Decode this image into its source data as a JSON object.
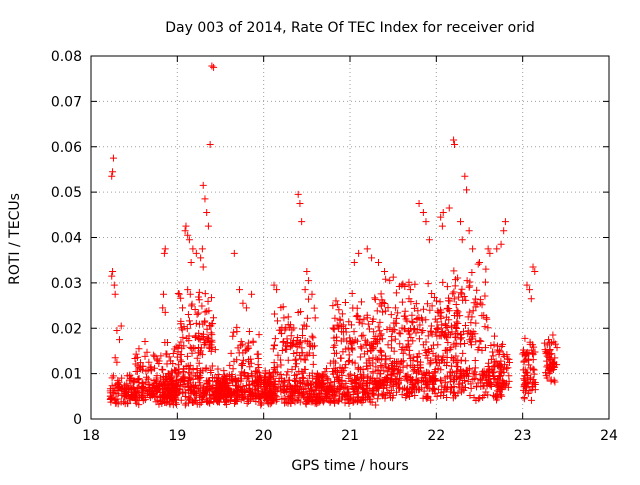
{
  "chart_data": {
    "type": "scatter",
    "title": "Day 003 of 2014, Rate Of TEC Index for receiver orid",
    "xlabel": "GPS time / hours",
    "ylabel": "ROTI / TECUs",
    "xlim": [
      18,
      24
    ],
    "ylim": [
      0,
      0.08
    ],
    "x_ticks": [
      18,
      19,
      20,
      21,
      22,
      23,
      24
    ],
    "x_tick_labels": [
      "18",
      "19",
      "20",
      "21",
      "22",
      "23",
      "24"
    ],
    "y_ticks": [
      0,
      0.01,
      0.02,
      0.03,
      0.04,
      0.05,
      0.06,
      0.07,
      0.08
    ],
    "y_tick_labels": [
      "0",
      "0.01",
      "0.02",
      "0.03",
      "0.04",
      "0.05",
      "0.06",
      "0.07",
      "0.08"
    ],
    "grid": true,
    "marker": "+",
    "marker_color": "#ff0000",
    "series": [
      {
        "name": "ROTI",
        "points": [
          [
            18.26,
            0.0575
          ],
          [
            18.25,
            0.0545
          ],
          [
            18.24,
            0.0535
          ],
          [
            18.25,
            0.0325
          ],
          [
            18.24,
            0.0315
          ],
          [
            18.27,
            0.0295
          ],
          [
            18.28,
            0.0275
          ],
          [
            18.3,
            0.0195
          ],
          [
            18.35,
            0.0205
          ],
          [
            18.33,
            0.0175
          ],
          [
            18.28,
            0.0135
          ],
          [
            18.3,
            0.0125
          ],
          [
            18.26,
            0.0095
          ],
          [
            18.31,
            0.0085
          ],
          [
            18.86,
            0.0375
          ],
          [
            18.85,
            0.0365
          ],
          [
            18.84,
            0.0275
          ],
          [
            18.83,
            0.0245
          ],
          [
            18.86,
            0.0235
          ],
          [
            19.1,
            0.0425
          ],
          [
            19.09,
            0.0415
          ],
          [
            19.12,
            0.0405
          ],
          [
            19.14,
            0.0395
          ],
          [
            19.18,
            0.0375
          ],
          [
            19.22,
            0.0365
          ],
          [
            19.16,
            0.0345
          ],
          [
            19.12,
            0.0285
          ],
          [
            19.15,
            0.0275
          ],
          [
            19.06,
            0.0245
          ],
          [
            19.3,
            0.0515
          ],
          [
            19.32,
            0.0485
          ],
          [
            19.34,
            0.0455
          ],
          [
            19.36,
            0.0425
          ],
          [
            19.29,
            0.0375
          ],
          [
            19.27,
            0.0355
          ],
          [
            19.3,
            0.0335
          ],
          [
            19.38,
            0.0605
          ],
          [
            19.4,
            0.0778
          ],
          [
            19.42,
            0.0775
          ],
          [
            19.66,
            0.0365
          ],
          [
            19.72,
            0.0285
          ],
          [
            19.76,
            0.0255
          ],
          [
            19.8,
            0.0245
          ],
          [
            19.86,
            0.0275
          ],
          [
            20.12,
            0.0295
          ],
          [
            20.15,
            0.0285
          ],
          [
            20.4,
            0.0495
          ],
          [
            20.42,
            0.0475
          ],
          [
            20.44,
            0.0435
          ],
          [
            20.5,
            0.0325
          ],
          [
            20.52,
            0.0305
          ],
          [
            20.48,
            0.0285
          ],
          [
            20.56,
            0.0275
          ],
          [
            21.1,
            0.0365
          ],
          [
            21.05,
            0.0345
          ],
          [
            21.2,
            0.0375
          ],
          [
            21.25,
            0.0355
          ],
          [
            21.33,
            0.0345
          ],
          [
            21.4,
            0.0325
          ],
          [
            21.46,
            0.0305
          ],
          [
            21.6,
            0.0295
          ],
          [
            21.7,
            0.0285
          ],
          [
            21.8,
            0.0475
          ],
          [
            21.85,
            0.0455
          ],
          [
            21.88,
            0.0435
          ],
          [
            21.92,
            0.0395
          ],
          [
            22.05,
            0.0445
          ],
          [
            22.08,
            0.0455
          ],
          [
            22.07,
            0.0425
          ],
          [
            22.15,
            0.0465
          ],
          [
            22.2,
            0.0615
          ],
          [
            22.21,
            0.0605
          ],
          [
            22.28,
            0.0435
          ],
          [
            22.33,
            0.0535
          ],
          [
            22.35,
            0.0505
          ],
          [
            22.38,
            0.0415
          ],
          [
            22.42,
            0.0375
          ],
          [
            22.3,
            0.0395
          ],
          [
            22.5,
            0.0345
          ],
          [
            22.6,
            0.0375
          ],
          [
            22.62,
            0.0365
          ],
          [
            22.8,
            0.0435
          ],
          [
            22.78,
            0.0415
          ],
          [
            22.75,
            0.0385
          ],
          [
            22.7,
            0.0375
          ],
          [
            23.05,
            0.0295
          ],
          [
            23.08,
            0.0285
          ],
          [
            23.1,
            0.0265
          ],
          [
            23.12,
            0.0335
          ],
          [
            23.14,
            0.0325
          ],
          [
            23.3,
            0.0175
          ],
          [
            23.35,
            0.0185
          ],
          [
            23.38,
            0.0165
          ]
        ],
        "density_bands": [
          {
            "x": [
              18.22,
              19.0
            ],
            "y": [
              0.003,
              0.011
            ],
            "count": 260
          },
          {
            "x": [
              18.5,
              19.0
            ],
            "y": [
              0.008,
              0.018
            ],
            "count": 60
          },
          {
            "x": [
              18.85,
              19.6
            ],
            "y": [
              0.003,
              0.012
            ],
            "count": 260
          },
          {
            "x": [
              19.0,
              19.45
            ],
            "y": [
              0.01,
              0.03
            ],
            "count": 110
          },
          {
            "x": [
              19.45,
              20.1
            ],
            "y": [
              0.003,
              0.011
            ],
            "count": 220
          },
          {
            "x": [
              19.6,
              19.95
            ],
            "y": [
              0.009,
              0.022
            ],
            "count": 45
          },
          {
            "x": [
              20.0,
              20.7
            ],
            "y": [
              0.003,
              0.012
            ],
            "count": 220
          },
          {
            "x": [
              20.1,
              20.6
            ],
            "y": [
              0.01,
              0.028
            ],
            "count": 90
          },
          {
            "x": [
              20.6,
              21.3
            ],
            "y": [
              0.003,
              0.013
            ],
            "count": 240
          },
          {
            "x": [
              20.8,
              21.3
            ],
            "y": [
              0.01,
              0.03
            ],
            "count": 110
          },
          {
            "x": [
              21.3,
              22.0
            ],
            "y": [
              0.004,
              0.016
            ],
            "count": 240
          },
          {
            "x": [
              21.3,
              22.0
            ],
            "y": [
              0.012,
              0.032
            ],
            "count": 130
          },
          {
            "x": [
              22.0,
              22.8
            ],
            "y": [
              0.004,
              0.018
            ],
            "count": 200
          },
          {
            "x": [
              22.0,
              22.6
            ],
            "y": [
              0.015,
              0.035
            ],
            "count": 130
          },
          {
            "x": [
              22.6,
              22.85
            ],
            "y": [
              0.004,
              0.02
            ],
            "count": 50
          },
          {
            "x": [
              23.0,
              23.15
            ],
            "y": [
              0.004,
              0.02
            ],
            "count": 70
          },
          {
            "x": [
              23.25,
              23.4
            ],
            "y": [
              0.007,
              0.019
            ],
            "count": 55
          }
        ]
      }
    ]
  }
}
